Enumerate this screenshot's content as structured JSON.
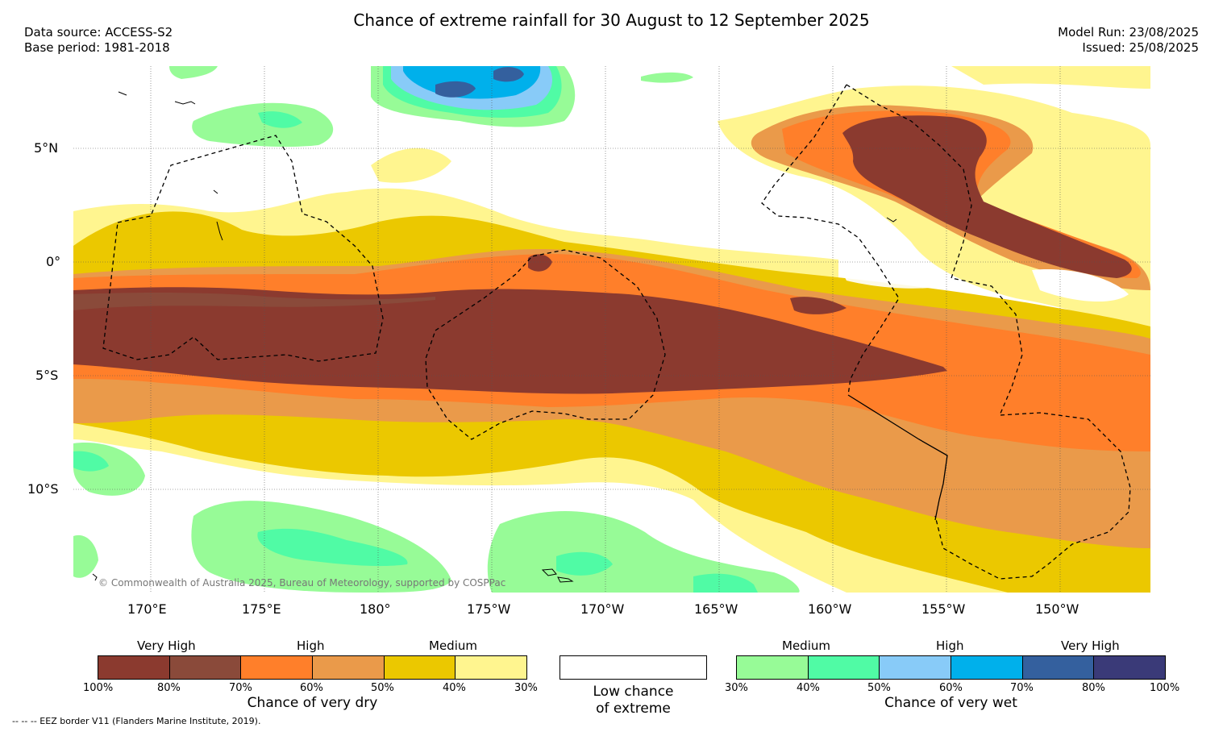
{
  "title": "Chance of extreme rainfall for 30 August to 12 September 2025",
  "header": {
    "data_source": "Data source: ACCESS-S2",
    "base_period": "Base period: 1981-2018",
    "model_run": "Model Run: 23/08/2025",
    "issued": "Issued: 25/08/2025"
  },
  "map": {
    "lat_labels": [
      "5°N",
      "0°",
      "5°S",
      "10°S"
    ],
    "lon_labels": [
      "170°E",
      "175°E",
      "180°",
      "175°W",
      "170°W",
      "165°W",
      "160°W",
      "155°W",
      "150°W"
    ],
    "copyright": "© Commonwealth of Australia 2025, Bureau of Meteorology, supported by COSPPac"
  },
  "colors": {
    "dry": [
      "#8b3a2f",
      "#8a4a3a",
      "#ff7f2a",
      "#ea9a4a",
      "#ebc800",
      "#fff58f"
    ],
    "wet": [
      "#97fb97",
      "#50fba5",
      "#88cbf8",
      "#00b0eb",
      "#34609e",
      "#3a3a78"
    ],
    "low": "#ffffff"
  },
  "legend": {
    "dry": {
      "levels": [
        "Very High",
        "High",
        "Medium"
      ],
      "ticks": [
        "100%",
        "80%",
        "70%",
        "60%",
        "50%",
        "40%",
        "30%"
      ],
      "caption": "Chance of very dry"
    },
    "low": {
      "caption_line1": "Low chance",
      "caption_line2": "of extreme"
    },
    "wet": {
      "levels": [
        "Medium",
        "High",
        "Very High"
      ],
      "ticks": [
        "30%",
        "40%",
        "50%",
        "60%",
        "70%",
        "80%",
        "100%"
      ],
      "caption": "Chance of very wet"
    }
  },
  "footer": {
    "eez_note": "--  --  -- EEZ border V11 (Flanders Marine Institute, 2019)."
  }
}
